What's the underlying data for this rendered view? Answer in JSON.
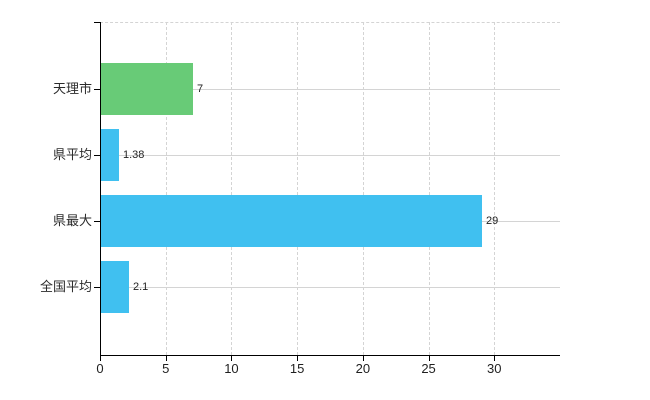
{
  "chart_data": {
    "type": "bar",
    "orientation": "horizontal",
    "title": "",
    "xlabel": "",
    "ylabel": "",
    "categories": [
      "天理市",
      "県平均",
      "県最大",
      "全国平均"
    ],
    "values": [
      7,
      1.38,
      29,
      2.1
    ],
    "value_labels": [
      "7",
      "1.38",
      "29",
      "2.1"
    ],
    "bar_colors": [
      "#68cb77",
      "#40c0f0",
      "#40c0f0",
      "#40c0f0"
    ],
    "x_tick_values": [
      0,
      5,
      10,
      15,
      20,
      25,
      30
    ],
    "x_tick_labels": [
      "0",
      "5",
      "10",
      "15",
      "20",
      "25",
      "30"
    ],
    "xlim": [
      0,
      35
    ],
    "grid": true,
    "legend": false
  },
  "colors": {
    "background": "#ffffff",
    "axis": "#000000",
    "gridline": "#d4d4d4",
    "category_text": "#2b2b2b",
    "tick_text": "#1f1f1f",
    "value_text": "#1f1f1f",
    "bar_green": "#68cb77",
    "bar_blue": "#40c0f0"
  }
}
